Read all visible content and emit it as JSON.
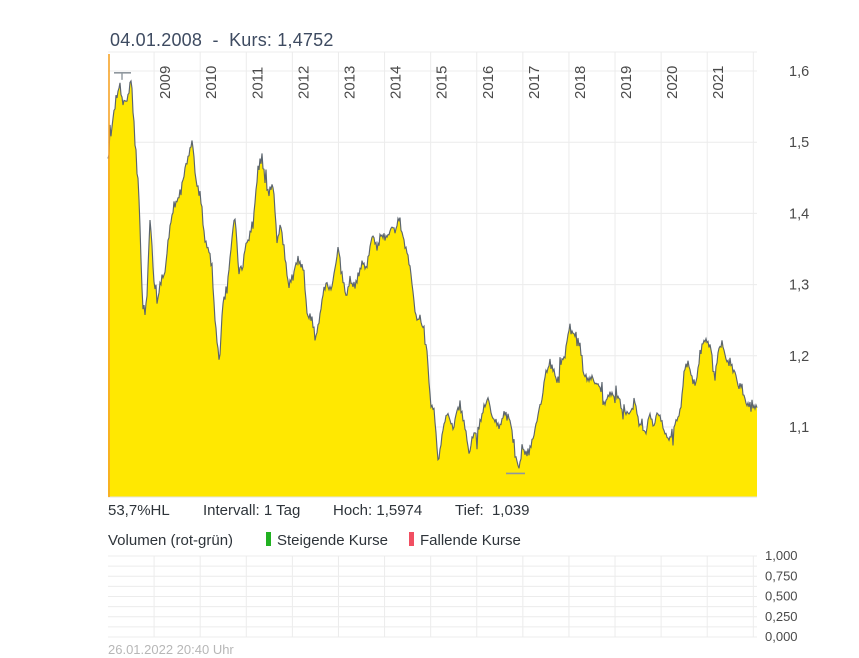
{
  "header": {
    "title": "04.01.2008  -  Kurs: 1,4752"
  },
  "stats": {
    "percent_hl": "53,7%HL",
    "interval": "Intervall: 1 Tag",
    "hoch": "Hoch: 1,5974",
    "tief": "Tief:  1,039"
  },
  "legend": {
    "volume_label": "Volumen (rot-grün)",
    "rising": "Steigende Kurse",
    "falling": "Fallende Kurse"
  },
  "footer": {
    "timestamp": "26.01.2022 20:40 Uhr"
  },
  "colors": {
    "area_yellow": "#ffe801",
    "price_line": "#5c656e",
    "cursor_orange": "#f7a428",
    "rising_green": "#21b121",
    "falling_red": "#f14f62",
    "grid": "#ececec",
    "axis_text": "#4a4a4a",
    "marker_gray": "#8f979e",
    "title_text": "#3e4b61",
    "muted_text": "#b7b7b7"
  },
  "chart_data": {
    "type": "area",
    "title": "04.01.2008 - Kurs: 1,4752",
    "xlabel": "",
    "ylabel": "Kurs",
    "x_unit": "year",
    "x_start": 2008.0,
    "x_end": 2022.08,
    "x_labels": [
      "2009",
      "2010",
      "2011",
      "2012",
      "2013",
      "2014",
      "2015",
      "2016",
      "2017",
      "2018",
      "2019",
      "2020",
      "2021"
    ],
    "x_gridline_years": [
      2009,
      2010,
      2011,
      2012,
      2013,
      2014,
      2015,
      2016,
      2017,
      2018,
      2019,
      2020,
      2021,
      2022
    ],
    "y_ticks": [
      {
        "value": 1.1,
        "label": "1,1"
      },
      {
        "value": 1.2,
        "label": "1,2"
      },
      {
        "value": 1.3,
        "label": "1,3"
      },
      {
        "value": 1.4,
        "label": "1,4"
      },
      {
        "value": 1.5,
        "label": "1,5"
      },
      {
        "value": 1.6,
        "label": "1,6"
      }
    ],
    "ylim": [
      1.0,
      1.62
    ],
    "grid": true,
    "legend_position": "below",
    "high": 1.5974,
    "low": 1.039,
    "cursor": {
      "date": "04.01.2008",
      "value": 1.4752
    },
    "series": [
      {
        "name": "Kurs",
        "cadence": "monthly",
        "start": "2008-01",
        "end": "2022-01",
        "values": [
          1.475,
          1.52,
          1.56,
          1.58,
          1.555,
          1.56,
          1.59,
          1.5,
          1.43,
          1.27,
          1.27,
          1.4,
          1.3,
          1.28,
          1.31,
          1.32,
          1.38,
          1.41,
          1.42,
          1.43,
          1.46,
          1.48,
          1.5,
          1.44,
          1.43,
          1.37,
          1.35,
          1.33,
          1.24,
          1.19,
          1.28,
          1.29,
          1.35,
          1.4,
          1.32,
          1.32,
          1.36,
          1.37,
          1.4,
          1.46,
          1.48,
          1.44,
          1.43,
          1.44,
          1.36,
          1.39,
          1.34,
          1.3,
          1.31,
          1.33,
          1.33,
          1.32,
          1.25,
          1.26,
          1.22,
          1.25,
          1.29,
          1.3,
          1.29,
          1.32,
          1.35,
          1.31,
          1.28,
          1.31,
          1.3,
          1.31,
          1.33,
          1.32,
          1.35,
          1.37,
          1.35,
          1.37,
          1.36,
          1.37,
          1.38,
          1.38,
          1.39,
          1.36,
          1.34,
          1.31,
          1.26,
          1.25,
          1.24,
          1.21,
          1.13,
          1.12,
          1.05,
          1.09,
          1.12,
          1.11,
          1.1,
          1.13,
          1.12,
          1.1,
          1.06,
          1.09,
          1.09,
          1.11,
          1.13,
          1.14,
          1.11,
          1.11,
          1.1,
          1.12,
          1.12,
          1.1,
          1.06,
          1.045,
          1.07,
          1.06,
          1.07,
          1.09,
          1.12,
          1.14,
          1.18,
          1.19,
          1.18,
          1.16,
          1.19,
          1.2,
          1.24,
          1.23,
          1.23,
          1.21,
          1.17,
          1.17,
          1.17,
          1.16,
          1.16,
          1.13,
          1.14,
          1.15,
          1.14,
          1.14,
          1.12,
          1.12,
          1.12,
          1.14,
          1.11,
          1.1,
          1.09,
          1.12,
          1.1,
          1.12,
          1.11,
          1.09,
          1.08,
          1.09,
          1.11,
          1.12,
          1.18,
          1.19,
          1.17,
          1.16,
          1.2,
          1.22,
          1.22,
          1.21,
          1.17,
          1.21,
          1.22,
          1.19,
          1.19,
          1.18,
          1.16,
          1.16,
          1.13,
          1.13,
          1.13
        ]
      }
    ],
    "volume_panel": {
      "label": "Volumen (rot-grün)",
      "y_ticks": [
        "1,000",
        "0,750",
        "0,500",
        "0,250",
        "0,000"
      ],
      "values": []
    }
  }
}
